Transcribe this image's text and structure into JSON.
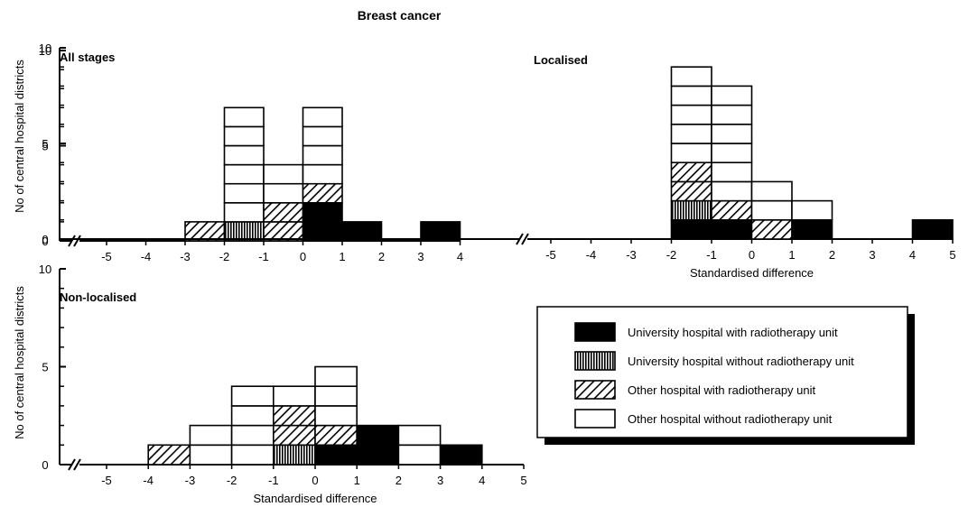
{
  "title": "Breast cancer",
  "ylabel": "No of central hospital districts",
  "xlabel": "Standardised difference",
  "categories": [
    {
      "key": "univ_rt",
      "label": "University hospital with radiotherapy unit",
      "pattern": "solid",
      "color": "#000000"
    },
    {
      "key": "univ_nort",
      "label": "University hospital without radiotherapy unit",
      "pattern": "vertical",
      "color": "#000000"
    },
    {
      "key": "other_rt",
      "label": "Other hospital with radiotherapy unit",
      "pattern": "diagonal",
      "color": "#000000"
    },
    {
      "key": "other_nort",
      "label": "Other hospital without radiotherapy unit",
      "pattern": "empty",
      "color": "#ffffff"
    }
  ],
  "chart_data": [
    {
      "type": "bar",
      "stacked": true,
      "label": "All stages",
      "x_ticks": [
        -5,
        -4,
        -3,
        -2,
        -1,
        0,
        1,
        2,
        3,
        4
      ],
      "y_ticks": [
        0,
        5,
        10
      ],
      "xlim": [
        -5,
        4
      ],
      "ylim": [
        0,
        10
      ],
      "xlabel": "",
      "bins": [
        {
          "x": [
            -3,
            -2
          ],
          "stack": [
            "other_rt"
          ]
        },
        {
          "x": [
            -2,
            -1
          ],
          "stack": [
            "univ_nort",
            "other_nort",
            "other_nort",
            "other_nort",
            "other_nort",
            "other_nort",
            "other_nort"
          ]
        },
        {
          "x": [
            -1,
            0
          ],
          "stack": [
            "other_rt",
            "other_rt",
            "other_nort",
            "other_nort"
          ]
        },
        {
          "x": [
            0,
            1
          ],
          "stack": [
            "univ_rt",
            "univ_rt",
            "other_rt",
            "other_nort",
            "other_nort",
            "other_nort",
            "other_nort"
          ]
        },
        {
          "x": [
            1,
            2
          ],
          "stack": [
            "univ_rt"
          ]
        },
        {
          "x": [
            3,
            4
          ],
          "stack": [
            "univ_rt"
          ]
        }
      ]
    },
    {
      "type": "bar",
      "stacked": true,
      "label": "Localised",
      "x_ticks": [
        -5,
        -4,
        -3,
        -2,
        -1,
        0,
        1,
        2,
        3,
        4,
        5
      ],
      "y_ticks": [
        0,
        5,
        10
      ],
      "xlim": [
        -5,
        5
      ],
      "ylim": [
        0,
        10
      ],
      "xlabel": "Standardised difference",
      "bins": [
        {
          "x": [
            -2,
            -1
          ],
          "stack": [
            "univ_rt",
            "univ_nort",
            "other_rt",
            "other_rt",
            "other_nort",
            "other_nort",
            "other_nort",
            "other_nort",
            "other_nort"
          ]
        },
        {
          "x": [
            -1,
            0
          ],
          "stack": [
            "univ_rt",
            "other_rt",
            "other_nort",
            "other_nort",
            "other_nort",
            "other_nort",
            "other_nort",
            "other_nort"
          ]
        },
        {
          "x": [
            0,
            1
          ],
          "stack": [
            "other_rt",
            "other_nort",
            "other_nort"
          ]
        },
        {
          "x": [
            1,
            2
          ],
          "stack": [
            "univ_rt",
            "other_nort"
          ]
        },
        {
          "x": [
            4,
            5
          ],
          "stack": [
            "univ_rt"
          ]
        }
      ]
    },
    {
      "type": "bar",
      "stacked": true,
      "label": "Non-localised",
      "x_ticks": [
        -5,
        -4,
        -3,
        -2,
        -1,
        0,
        1,
        2,
        3,
        4,
        5
      ],
      "y_ticks": [
        0,
        5,
        10
      ],
      "xlim": [
        -5,
        5
      ],
      "ylim": [
        0,
        10
      ],
      "xlabel": "Standardised difference",
      "bins": [
        {
          "x": [
            -4,
            -3
          ],
          "stack": [
            "other_rt"
          ]
        },
        {
          "x": [
            -3,
            -2
          ],
          "stack": [
            "other_nort",
            "other_nort"
          ]
        },
        {
          "x": [
            -2,
            -1
          ],
          "stack": [
            "other_nort",
            "other_nort",
            "other_nort",
            "other_nort"
          ]
        },
        {
          "x": [
            -1,
            0
          ],
          "stack": [
            "univ_nort",
            "other_rt",
            "other_rt",
            "other_nort"
          ]
        },
        {
          "x": [
            0,
            1
          ],
          "stack": [
            "univ_rt",
            "other_rt",
            "other_nort",
            "other_nort",
            "other_nort"
          ]
        },
        {
          "x": [
            1,
            2
          ],
          "stack": [
            "univ_rt",
            "univ_rt"
          ]
        },
        {
          "x": [
            2,
            3
          ],
          "stack": [
            "other_nort",
            "other_nort"
          ]
        },
        {
          "x": [
            3,
            4
          ],
          "stack": [
            "univ_rt"
          ]
        }
      ]
    }
  ]
}
